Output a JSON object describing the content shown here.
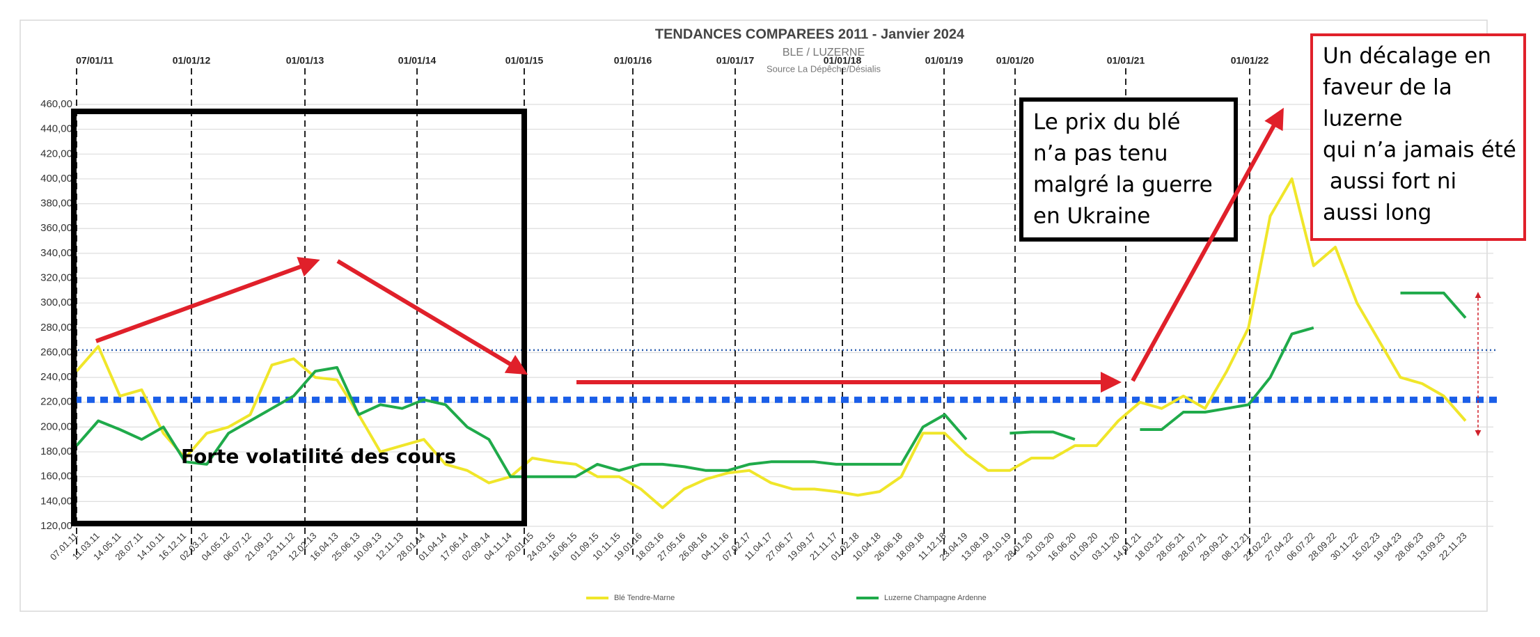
{
  "chart_data": {
    "type": "line",
    "title": "TENDANCES COMPAREES 2011 - Janvier 2024",
    "subtitle": "BLE / LUZERNE",
    "source": "Source La Dépêche/Désialis",
    "categories": [
      "07.01.11",
      "11.03.11",
      "14.05.11",
      "28.07.11",
      "14.10.11",
      "16.12.11",
      "02.03.12",
      "04.05.12",
      "06.07.12",
      "21.09.12",
      "23.11.12",
      "12.02.13",
      "16.04.13",
      "25.06.13",
      "10.09.13",
      "12.11.13",
      "28.01.14",
      "01.04.14",
      "17.06.14",
      "02.09.14",
      "04.11.14",
      "20.01.15",
      "24.03.15",
      "16.06.15",
      "01.09.15",
      "10.11.15",
      "19.01.16",
      "18.03.16",
      "27.05.16",
      "26.08.16",
      "04.11.16",
      "07.02.17",
      "11.04.17",
      "27.06.17",
      "19.09.17",
      "21.11.17",
      "01.02.18",
      "10.04.18",
      "26.06.18",
      "18.09.18",
      "11.12.18",
      "23.04.19",
      "13.08.19",
      "29.10.19",
      "28.01.20",
      "31.03.20",
      "16.06.20",
      "01.09.20",
      "03.11.20",
      "14.01.21",
      "18.03.21",
      "28.05.21",
      "28.07.21",
      "29.09.21",
      "08.12.21",
      "23.02.22",
      "27.04.22",
      "06.07.22",
      "28.09.22",
      "30.11.22",
      "15.02.23",
      "19.04.23",
      "28.06.23",
      "13.09.23",
      "22.11.23"
    ],
    "series": [
      {
        "name": "Blé Tendre-Marne",
        "color": "#f0e62a",
        "values": [
          245,
          265,
          225,
          230,
          195,
          175,
          195,
          200,
          210,
          250,
          255,
          240,
          238,
          210,
          180,
          185,
          190,
          170,
          165,
          155,
          160,
          175,
          172,
          170,
          160,
          160,
          150,
          135,
          150,
          158,
          163,
          165,
          155,
          150,
          150,
          148,
          145,
          148,
          160,
          195,
          195,
          178,
          165,
          165,
          175,
          175,
          185,
          185,
          205,
          220,
          215,
          225,
          215,
          245,
          280,
          370,
          400,
          330,
          345,
          300,
          270,
          240,
          235,
          225,
          205
        ]
      },
      {
        "name": "Luzerne Champagne Ardenne",
        "color": "#1faa4a",
        "values": [
          185,
          205,
          198,
          190,
          200,
          172,
          170,
          195,
          205,
          215,
          225,
          245,
          248,
          210,
          218,
          215,
          222,
          218,
          200,
          190,
          160,
          160,
          160,
          160,
          170,
          165,
          170,
          170,
          168,
          165,
          165,
          170,
          172,
          172,
          172,
          170,
          170,
          170,
          170,
          200,
          210,
          190,
          null,
          195,
          196,
          196,
          190,
          null,
          null,
          198,
          198,
          212,
          212,
          215,
          218,
          240,
          275,
          280,
          null,
          null,
          null,
          308,
          308,
          308,
          288
        ]
      }
    ],
    "ylim": [
      120,
      460
    ],
    "yticks": [
      {
        "value": 120,
        "label": "120,00"
      },
      {
        "value": 140,
        "label": "140,00"
      },
      {
        "value": 160,
        "label": "160,00"
      },
      {
        "value": 180,
        "label": "180,00"
      },
      {
        "value": 200,
        "label": "200,00"
      },
      {
        "value": 220,
        "label": "220,00"
      },
      {
        "value": 240,
        "label": "240,00"
      },
      {
        "value": 260,
        "label": "260,00"
      },
      {
        "value": 280,
        "label": "280,00"
      },
      {
        "value": 300,
        "label": "300,00"
      },
      {
        "value": 320,
        "label": "320,00"
      },
      {
        "value": 340,
        "label": "340,00"
      },
      {
        "value": 360,
        "label": "360,00"
      },
      {
        "value": 380,
        "label": "380,00"
      },
      {
        "value": 400,
        "label": "400,00"
      },
      {
        "value": 420,
        "label": "420,00"
      },
      {
        "value": 440,
        "label": "440,00"
      },
      {
        "value": 460,
        "label": "460,00"
      }
    ],
    "grid": true,
    "legend": "bottom",
    "year_markers": [
      "07/01/11",
      "01/01/12",
      "01/01/13",
      "01/01/14",
      "01/01/15",
      "01/01/16",
      "01/01/17",
      "01/01/18",
      "01/01/19",
      "01/01/20",
      "01/01/21",
      "01/01/22"
    ],
    "reference_lines": [
      {
        "value": 262,
        "color": "#2a5db0",
        "style": "dotted"
      },
      {
        "value": 222,
        "color": "#1a5ee8",
        "style": "thick-dotted"
      }
    ],
    "annotations": {
      "volatility": "Forte volatilité des cours",
      "wheat_box": [
        "Le prix du blé",
        "n’a pas tenu",
        "malgré la guerre",
        "en Ukraine"
      ],
      "alfalfa_box": [
        "Un décalage en",
        "faveur de la",
        "luzerne",
        "qui n’a jamais été",
        " aussi fort ni",
        "aussi long"
      ]
    }
  }
}
